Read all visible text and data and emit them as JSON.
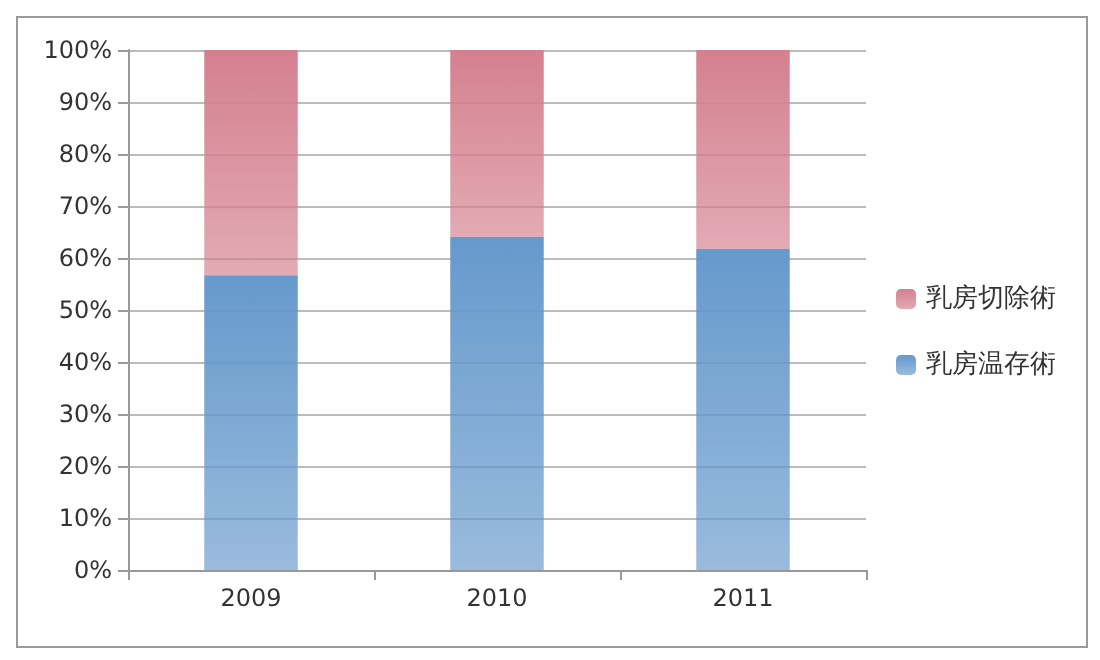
{
  "chart_data": {
    "type": "bar",
    "stacked": true,
    "categories": [
      "2009",
      "2010",
      "2011"
    ],
    "series": [
      {
        "name": "乳房温存術",
        "color": "#6699cc",
        "values": [
          56.7,
          64.1,
          61.8
        ]
      },
      {
        "name": "乳房切除術",
        "color": "#d4808f",
        "values": [
          43.3,
          35.9,
          38.2
        ]
      }
    ],
    "ylim": [
      0,
      100
    ],
    "yticks": [
      {
        "value": 0,
        "label": "0%"
      },
      {
        "value": 10,
        "label": "10%"
      },
      {
        "value": 20,
        "label": "20%"
      },
      {
        "value": 30,
        "label": "30%"
      },
      {
        "value": 40,
        "label": "40%"
      },
      {
        "value": 50,
        "label": "50%"
      },
      {
        "value": 60,
        "label": "60%"
      },
      {
        "value": 70,
        "label": "70%"
      },
      {
        "value": 80,
        "label": "80%"
      },
      {
        "value": 90,
        "label": "90%"
      },
      {
        "value": 100,
        "label": "100%"
      }
    ],
    "grid": "y",
    "legend": "right"
  }
}
